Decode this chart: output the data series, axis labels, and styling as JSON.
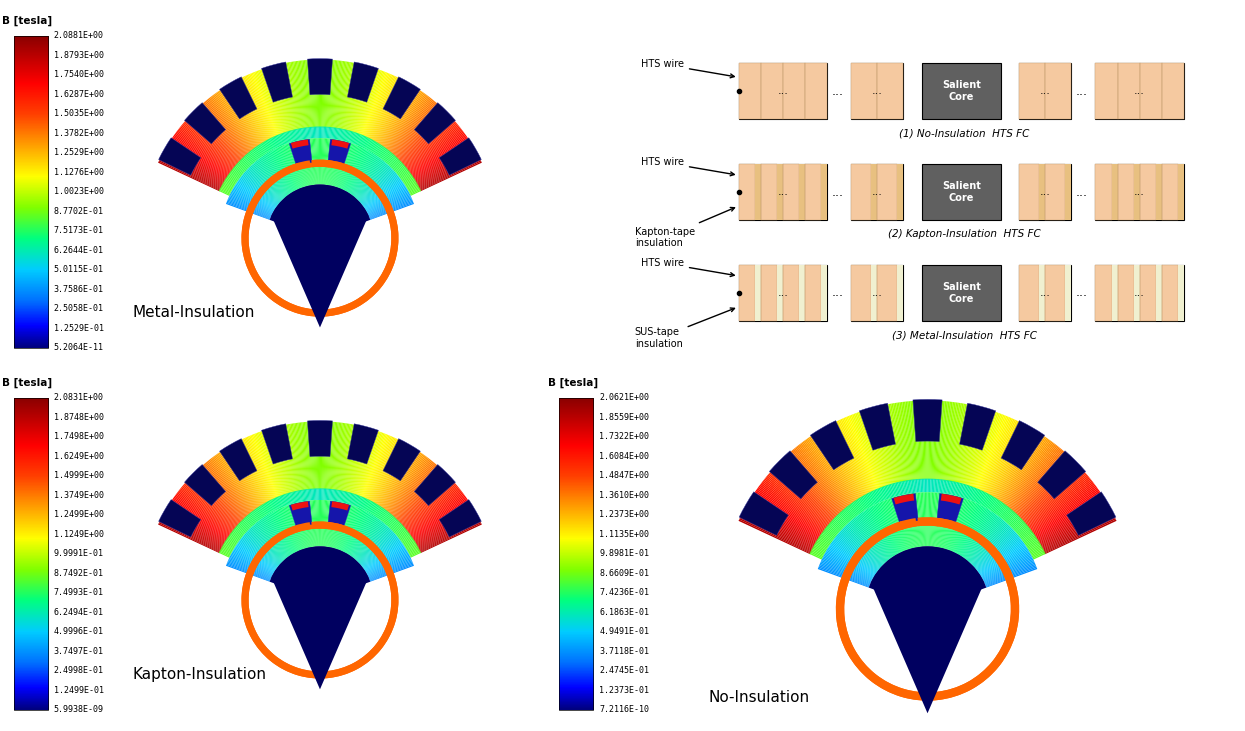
{
  "colorbar_MI": {
    "label": "B [tesla]",
    "values": [
      "2.0881E+00",
      "1.8793E+00",
      "1.7540E+00",
      "1.6287E+00",
      "1.5035E+00",
      "1.3782E+00",
      "1.2529E+00",
      "1.1276E+00",
      "1.0023E+00",
      "8.7702E-01",
      "7.5173E-01",
      "6.2644E-01",
      "5.0115E-01",
      "3.7586E-01",
      "2.5058E-01",
      "1.2529E-01",
      "5.2064E-11"
    ]
  },
  "colorbar_KI": {
    "label": "B [tesla]",
    "values": [
      "2.0831E+00",
      "1.8748E+00",
      "1.7498E+00",
      "1.6249E+00",
      "1.4999E+00",
      "1.3749E+00",
      "1.2499E+00",
      "1.1249E+00",
      "9.9991E-01",
      "8.7492E-01",
      "7.4993E-01",
      "6.2494E-01",
      "4.9996E-01",
      "3.7497E-01",
      "2.4998E-01",
      "1.2499E-01",
      "5.9938E-09"
    ]
  },
  "colorbar_NI": {
    "label": "B [tesla]",
    "values": [
      "2.0621E+00",
      "1.8559E+00",
      "1.7322E+00",
      "1.6084E+00",
      "1.4847E+00",
      "1.3610E+00",
      "1.2373E+00",
      "1.1135E+00",
      "9.8981E-01",
      "8.6609E-01",
      "7.4236E-01",
      "6.1863E-01",
      "4.9491E-01",
      "3.7118E-01",
      "2.4745E-01",
      "1.2373E-01",
      "7.2116E-10"
    ]
  },
  "label_MI": "Metal-Insulation",
  "label_KI": "Kapton-Insulation",
  "label_NI": "No-Insulation",
  "diagram_title_1": "(1) No-Insulation  HTS FC",
  "diagram_title_2": "(2) Kapton-Insulation  HTS FC",
  "diagram_title_3": "(3) Metal-Insulation  HTS FC",
  "background_color": "#FFFFFF",
  "salient_color": "#606060"
}
